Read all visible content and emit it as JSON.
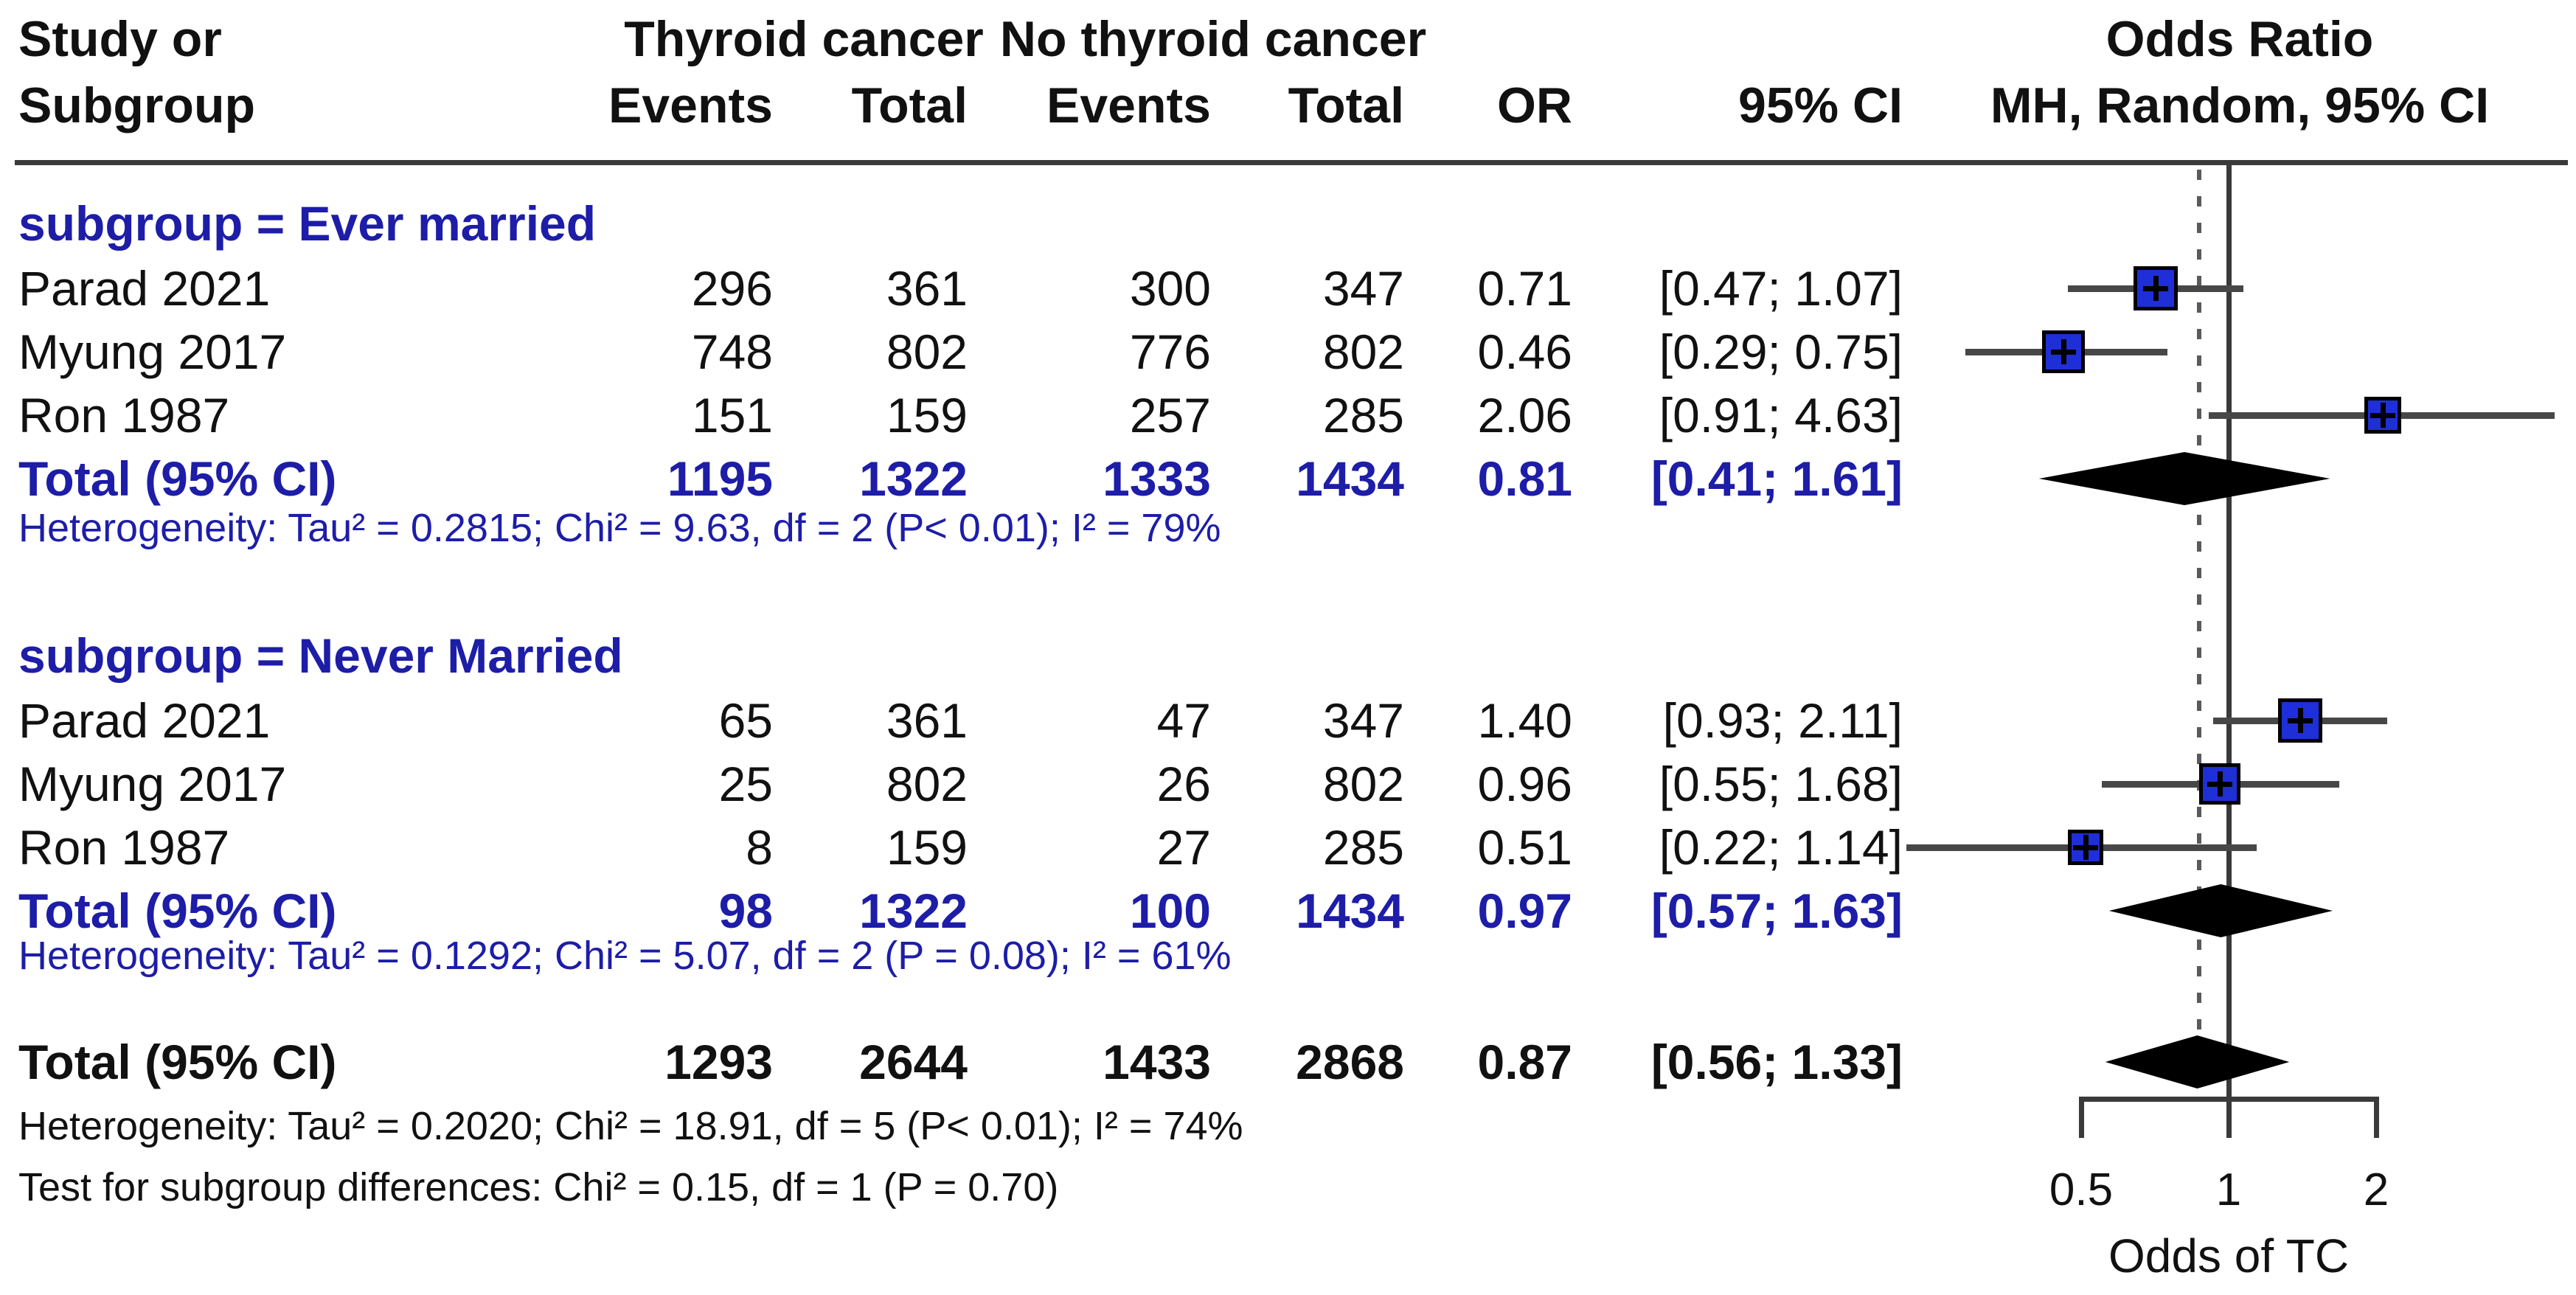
{
  "header": {
    "study_line1": "Study or",
    "study_line2": "Subgroup",
    "group1": "Thyroid cancer",
    "group2": "No thyroid cancer",
    "events1": "Events",
    "total1": "Total",
    "events2": "Events",
    "total2": "Total",
    "or": "OR",
    "ci": "95% CI",
    "plot_line1": "Odds Ratio",
    "plot_line2": "MH, Random, 95% CI"
  },
  "table": {
    "subgroups": [
      {
        "label": "subgroup = Ever married",
        "rows": [
          {
            "study": "Parad 2021",
            "e1": "296",
            "t1": "361",
            "e2": "300",
            "t2": "347",
            "or": "0.71",
            "ci": "[0.47; 1.07]",
            "or_val": 0.71,
            "lo": 0.47,
            "hi": 1.07,
            "w": 60
          },
          {
            "study": "Myung 2017",
            "e1": "748",
            "t1": "802",
            "e2": "776",
            "t2": "802",
            "or": "0.46",
            "ci": "[0.29; 0.75]",
            "or_val": 0.46,
            "lo": 0.29,
            "hi": 0.75,
            "w": 58
          },
          {
            "study": "Ron 1987",
            "e1": "151",
            "t1": "159",
            "e2": "257",
            "t2": "285",
            "or": "2.06",
            "ci": "[0.91; 4.63]",
            "or_val": 2.06,
            "lo": 0.91,
            "hi": 4.63,
            "w": 50
          }
        ],
        "total": {
          "study": "Total (95% CI)",
          "e1": "1195",
          "t1": "1322",
          "e2": "1333",
          "t2": "1434",
          "or": "0.81",
          "ci": "[0.41; 1.61]",
          "or_val": 0.81,
          "lo": 0.41,
          "hi": 1.61
        },
        "heterogeneity": "Heterogeneity: Tau² = 0.2815; Chi² = 9.63, df = 2 (P< 0.01); I² = 79%"
      },
      {
        "label": "subgroup = Never Married",
        "rows": [
          {
            "study": "Parad 2021",
            "e1": "65",
            "t1": "361",
            "e2": "47",
            "t2": "347",
            "or": "1.40",
            "ci": "[0.93; 2.11]",
            "or_val": 1.4,
            "lo": 0.93,
            "hi": 2.11,
            "w": 60
          },
          {
            "study": "Myung 2017",
            "e1": "25",
            "t1": "802",
            "e2": "26",
            "t2": "802",
            "or": "0.96",
            "ci": "[0.55; 1.68]",
            "or_val": 0.96,
            "lo": 0.55,
            "hi": 1.68,
            "w": 56
          },
          {
            "study": "Ron 1987",
            "e1": "8",
            "t1": "159",
            "e2": "27",
            "t2": "285",
            "or": "0.51",
            "ci": "[0.22; 1.14]",
            "or_val": 0.51,
            "lo": 0.22,
            "hi": 1.14,
            "w": 48
          }
        ],
        "total": {
          "study": "Total (95% CI)",
          "e1": "98",
          "t1": "1322",
          "e2": "100",
          "t2": "1434",
          "or": "0.97",
          "ci": "[0.57; 1.63]",
          "or_val": 0.97,
          "lo": 0.57,
          "hi": 1.63
        },
        "heterogeneity": "Heterogeneity: Tau² = 0.1292; Chi² = 5.07, df = 2 (P = 0.08); I² = 61%"
      }
    ],
    "overall": {
      "total": {
        "study": "Total (95% CI)",
        "e1": "1293",
        "t1": "2644",
        "e2": "1433",
        "t2": "2868",
        "or": "0.87",
        "ci": "[0.56; 1.33]",
        "or_val": 0.87,
        "lo": 0.56,
        "hi": 1.33
      },
      "heterogeneity": "Heterogeneity: Tau² = 0.2020; Chi² = 18.91, df = 5 (P< 0.01); I² = 74%",
      "subgroup_test": "Test for subgroup differences: Chi² = 0.15, df = 1 (P = 0.70)"
    }
  },
  "axis": {
    "ticks": [
      "0.5",
      "1",
      "2"
    ],
    "tick_values": [
      0.5,
      1,
      2
    ],
    "label": "Odds of TC"
  },
  "colors": {
    "navy_text": "#1d1da8",
    "square_blue": "#1f2fd8",
    "marker_border": "#000000",
    "ci_line": "#474747",
    "axis_line": "#3a3a3a",
    "black_text": "#111111"
  },
  "chart_data": {
    "type": "scatter",
    "variant": "forest-plot",
    "title": "Odds Ratio, MH, Random, 95% CI",
    "x_scale": "log",
    "x_ticks": [
      0.5,
      1,
      2
    ],
    "xlabel": "Odds of TC",
    "null_line": 1,
    "pooled_dotted_line": 0.87,
    "legend_position": "none",
    "grid": false,
    "subgroups": [
      {
        "name": "Ever married",
        "studies": [
          {
            "study": "Parad 2021",
            "tc_events": 296,
            "tc_total": 361,
            "no_tc_events": 300,
            "no_tc_total": 347,
            "or": 0.71,
            "ci_low": 0.47,
            "ci_high": 1.07
          },
          {
            "study": "Myung 2017",
            "tc_events": 748,
            "tc_total": 802,
            "no_tc_events": 776,
            "no_tc_total": 802,
            "or": 0.46,
            "ci_low": 0.29,
            "ci_high": 0.75
          },
          {
            "study": "Ron 1987",
            "tc_events": 151,
            "tc_total": 159,
            "no_tc_events": 257,
            "no_tc_total": 285,
            "or": 2.06,
            "ci_low": 0.91,
            "ci_high": 4.63
          }
        ],
        "total": {
          "tc_events": 1195,
          "tc_total": 1322,
          "no_tc_events": 1333,
          "no_tc_total": 1434,
          "or": 0.81,
          "ci_low": 0.41,
          "ci_high": 1.61
        },
        "heterogeneity": {
          "tau2": 0.2815,
          "chi2": 9.63,
          "df": 2,
          "p": "< 0.01",
          "i2_pct": 79
        }
      },
      {
        "name": "Never Married",
        "studies": [
          {
            "study": "Parad 2021",
            "tc_events": 65,
            "tc_total": 361,
            "no_tc_events": 47,
            "no_tc_total": 347,
            "or": 1.4,
            "ci_low": 0.93,
            "ci_high": 2.11
          },
          {
            "study": "Myung 2017",
            "tc_events": 25,
            "tc_total": 802,
            "no_tc_events": 26,
            "no_tc_total": 802,
            "or": 0.96,
            "ci_low": 0.55,
            "ci_high": 1.68
          },
          {
            "study": "Ron 1987",
            "tc_events": 8,
            "tc_total": 159,
            "no_tc_events": 27,
            "no_tc_total": 285,
            "or": 0.51,
            "ci_low": 0.22,
            "ci_high": 1.14
          }
        ],
        "total": {
          "tc_events": 98,
          "tc_total": 1322,
          "no_tc_events": 100,
          "no_tc_total": 1434,
          "or": 0.97,
          "ci_low": 0.57,
          "ci_high": 1.63
        },
        "heterogeneity": {
          "tau2": 0.1292,
          "chi2": 5.07,
          "df": 2,
          "p": "= 0.08",
          "i2_pct": 61
        }
      }
    ],
    "overall": {
      "tc_events": 1293,
      "tc_total": 2644,
      "no_tc_events": 1433,
      "no_tc_total": 2868,
      "or": 0.87,
      "ci_low": 0.56,
      "ci_high": 1.33,
      "heterogeneity": {
        "tau2": 0.202,
        "chi2": 18.91,
        "df": 5,
        "p": "< 0.01",
        "i2_pct": 74
      },
      "subgroup_difference_test": {
        "chi2": 0.15,
        "df": 1,
        "p": 0.7
      }
    }
  }
}
